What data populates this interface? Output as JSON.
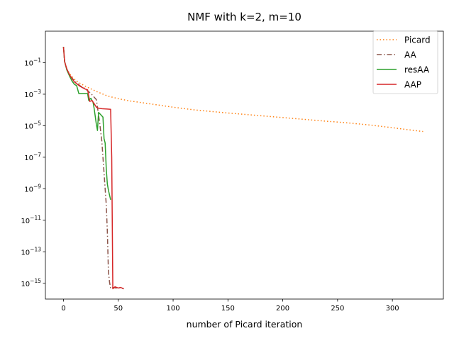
{
  "chart_data": {
    "type": "line",
    "title": "NMF with k=2, m=10",
    "xlabel": "number of Picard iteration",
    "ylabel": "",
    "y_scale": "log",
    "xlim": [
      -16.5,
      346.5
    ],
    "ylim": [
      1e-16,
      10
    ],
    "grid": false,
    "legend_position": "top-right",
    "x_ticks": [
      0,
      50,
      100,
      150,
      200,
      250,
      300
    ],
    "x_tick_labels": [
      "0",
      "50",
      "100",
      "150",
      "200",
      "250",
      "300"
    ],
    "y_ticks": [
      0.1,
      0.001,
      1e-05,
      1e-07,
      1e-09,
      1e-11,
      1e-13,
      1e-15
    ],
    "y_tick_labels": [
      {
        "base": "10",
        "exp": "−1"
      },
      {
        "base": "10",
        "exp": "−3"
      },
      {
        "base": "10",
        "exp": "−5"
      },
      {
        "base": "10",
        "exp": "−7"
      },
      {
        "base": "10",
        "exp": "−9"
      },
      {
        "base": "10",
        "exp": "−11"
      },
      {
        "base": "10",
        "exp": "−13"
      },
      {
        "base": "10",
        "exp": "−15"
      }
    ],
    "series": [
      {
        "name": "Picard",
        "color": "#ff7f0e",
        "dash": "1.5,3",
        "points": [
          [
            0,
            1
          ],
          [
            1,
            0.12
          ],
          [
            3,
            0.04
          ],
          [
            6,
            0.018
          ],
          [
            10,
            0.009
          ],
          [
            15,
            0.005
          ],
          [
            20,
            0.0032
          ],
          [
            30,
            0.0015
          ],
          [
            40,
            0.00078
          ],
          [
            50,
            0.00052
          ],
          [
            60,
            0.00038
          ],
          [
            70,
            0.0003
          ],
          [
            80,
            0.00024
          ],
          [
            100,
            0.00015
          ],
          [
            120,
            0.0001
          ],
          [
            150,
            6.4e-05
          ],
          [
            180,
            4.3e-05
          ],
          [
            200,
            3.3e-05
          ],
          [
            230,
            2.2e-05
          ],
          [
            260,
            1.5e-05
          ],
          [
            280,
            1.1e-05
          ],
          [
            300,
            7.5e-06
          ],
          [
            315,
            5.5e-06
          ],
          [
            328,
            4.3e-06
          ]
        ]
      },
      {
        "name": "AA",
        "color": "#8c564b",
        "dash": "7,3,1.5,3",
        "points": [
          [
            0,
            1
          ],
          [
            1,
            0.12
          ],
          [
            3,
            0.04
          ],
          [
            6,
            0.015
          ],
          [
            10,
            0.007
          ],
          [
            15,
            0.0035
          ],
          [
            20,
            0.0022
          ],
          [
            25,
            0.0011
          ],
          [
            30,
            0.00045
          ],
          [
            33,
            1.5e-05
          ],
          [
            35,
            1e-06
          ],
          [
            37,
            1e-08
          ],
          [
            39,
            1e-10
          ],
          [
            40,
            2e-12
          ],
          [
            41,
            5e-15
          ],
          [
            42,
            1.2e-15
          ],
          [
            43,
            4.8e-16
          ],
          [
            45,
            5.5e-16
          ],
          [
            48,
            5e-16
          ],
          [
            50,
            5.5e-16
          ],
          [
            52,
            5e-16
          ],
          [
            55,
            4.5e-16
          ]
        ]
      },
      {
        "name": "resAA",
        "color": "#2ca02c",
        "dash": "",
        "points": [
          [
            0,
            1
          ],
          [
            1,
            0.12
          ],
          [
            3,
            0.035
          ],
          [
            6,
            0.012
          ],
          [
            8,
            0.0065
          ],
          [
            10,
            0.0042
          ],
          [
            12,
            0.0035
          ],
          [
            14,
            0.0011
          ],
          [
            16,
            0.0011
          ],
          [
            18,
            0.0011
          ],
          [
            20,
            0.0011
          ],
          [
            22,
            0.0011
          ],
          [
            23,
            0.0004
          ],
          [
            25,
            0.00055
          ],
          [
            27,
            0.0003
          ],
          [
            28,
            0.00012
          ],
          [
            30,
            1.2e-05
          ],
          [
            31,
            5e-06
          ],
          [
            32,
            7e-05
          ],
          [
            34,
            5e-05
          ],
          [
            36,
            3.5e-05
          ],
          [
            37,
            1.5e-06
          ],
          [
            38,
            8e-07
          ],
          [
            39,
            2e-08
          ],
          [
            40,
            2e-09
          ],
          [
            41,
            8e-10
          ],
          [
            42,
            4e-10
          ],
          [
            43,
            2e-10
          ]
        ]
      },
      {
        "name": "AAP",
        "color": "#d62728",
        "dash": "",
        "points": [
          [
            0,
            1
          ],
          [
            1,
            0.12
          ],
          [
            3,
            0.04
          ],
          [
            6,
            0.015
          ],
          [
            10,
            0.006
          ],
          [
            15,
            0.0032
          ],
          [
            20,
            0.0021
          ],
          [
            22,
            0.0019
          ],
          [
            23,
            0.0008
          ],
          [
            24,
            0.00035
          ],
          [
            26,
            0.0004
          ],
          [
            28,
            0.00025
          ],
          [
            30,
            0.00015
          ],
          [
            32,
            0.00013
          ],
          [
            35,
            0.00012
          ],
          [
            40,
            0.000115
          ],
          [
            43,
            0.00011
          ],
          [
            44,
            1e-07
          ],
          [
            45,
            4.5e-16
          ],
          [
            47,
            6e-16
          ],
          [
            50,
            5e-16
          ],
          [
            52,
            5.5e-16
          ],
          [
            55,
            4.5e-16
          ]
        ]
      }
    ]
  }
}
